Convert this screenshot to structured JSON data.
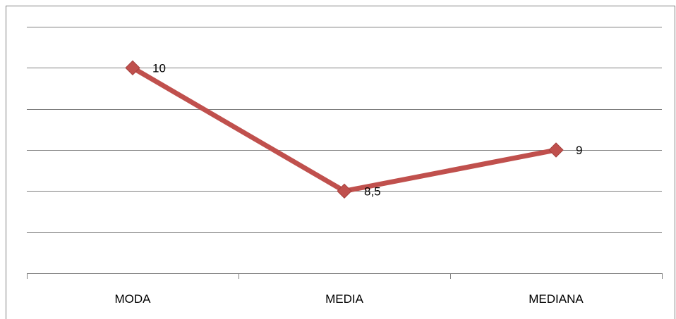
{
  "chart_data": {
    "type": "line",
    "categories": [
      "MODA",
      "MEDIA",
      "MEDIANA"
    ],
    "series": [
      {
        "values": [
          10,
          8.5,
          9
        ],
        "data_labels": [
          "10",
          "8,5",
          "9"
        ]
      }
    ],
    "ylim": [
      7.5,
      10.5
    ],
    "y_gridlines": [
      8,
      8.5,
      9,
      9.5,
      10,
      10.5
    ],
    "grid": true,
    "legend": "none",
    "title": "",
    "xlabel": "",
    "ylabel": "",
    "colors": {
      "series": "#c0504d",
      "marker": "#c0504d",
      "gridline": "#7f7f7f",
      "axis": "#7f7f7f",
      "border": "#7f7f7f"
    }
  }
}
